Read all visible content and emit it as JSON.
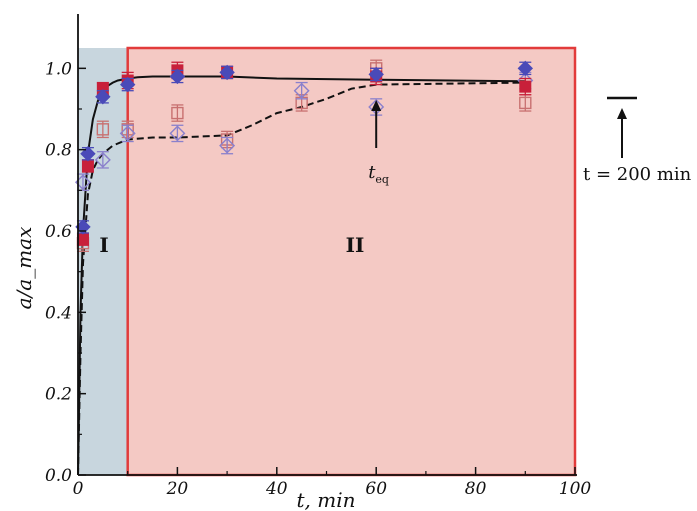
{
  "chart_data": {
    "type": "scatter",
    "title": "",
    "xlabel": "t, min",
    "ylabel": "a/a_max",
    "xlim": [
      0,
      100
    ],
    "ylim": [
      0,
      1.05
    ],
    "x_ticks": [
      0,
      20,
      40,
      60,
      80,
      100
    ],
    "y_ticks": [
      0.0,
      0.2,
      0.4,
      0.6,
      0.8,
      1.0
    ],
    "x_tick_labels": [
      "0",
      "20",
      "40",
      "60",
      "80",
      "100"
    ],
    "y_tick_labels": [
      "0.0",
      "0.2",
      "0.4",
      "0.6",
      "0.8",
      "1.0"
    ],
    "grid": false,
    "colors": {
      "filled_red": "#c8203a",
      "filled_blue": "#4a4ab8",
      "open_red": "#c87070",
      "open_blue": "#8a80cc",
      "region_I": "#c8d6de",
      "region_II": "#f4c9c4",
      "region_II_border": "#e23b3b"
    },
    "regions": [
      {
        "label": "I",
        "x_range": [
          0,
          10
        ]
      },
      {
        "label": "II",
        "x_range": [
          10,
          100
        ]
      }
    ],
    "series": [
      {
        "marker": "filled-square",
        "color_key": "filled_red",
        "x": [
          1,
          2,
          5,
          10,
          20,
          30,
          60,
          90
        ],
        "y": [
          0.58,
          0.76,
          0.95,
          0.97,
          0.995,
          0.99,
          0.98,
          0.955
        ],
        "err": [
          0.015,
          0.015,
          0.015,
          0.02,
          0.02,
          0.015,
          0.02,
          0.02
        ]
      },
      {
        "marker": "filled-diamond",
        "color_key": "filled_blue",
        "x": [
          1,
          2,
          5,
          10,
          20,
          30,
          60,
          90
        ],
        "y": [
          0.61,
          0.79,
          0.93,
          0.96,
          0.98,
          0.99,
          0.985,
          1.0
        ],
        "err": [
          0.015,
          0.015,
          0.015,
          0.015,
          0.015,
          0.015,
          0.015,
          0.015
        ]
      },
      {
        "marker": "open-square",
        "color_key": "open_red",
        "x": [
          1,
          5,
          10,
          20,
          30,
          45,
          60,
          90
        ],
        "y": [
          0.57,
          0.85,
          0.85,
          0.89,
          0.825,
          0.915,
          1.0,
          0.915
        ],
        "err": [
          0.02,
          0.02,
          0.02,
          0.02,
          0.02,
          0.02,
          0.02,
          0.02
        ]
      },
      {
        "marker": "open-diamond",
        "color_key": "open_blue",
        "x": [
          1,
          5,
          10,
          20,
          30,
          45,
          60,
          90
        ],
        "y": [
          0.72,
          0.775,
          0.84,
          0.84,
          0.81,
          0.945,
          0.905,
          0.97
        ],
        "err": [
          0.02,
          0.02,
          0.02,
          0.02,
          0.02,
          0.02,
          0.02,
          0.02
        ]
      }
    ],
    "curves": [
      {
        "style": "solid",
        "x": [
          0,
          0.5,
          1,
          2,
          3,
          4,
          5,
          6,
          7,
          8,
          10,
          12,
          15,
          20,
          30,
          40,
          60,
          90
        ],
        "y": [
          0,
          0.4,
          0.6,
          0.79,
          0.875,
          0.92,
          0.945,
          0.957,
          0.965,
          0.97,
          0.975,
          0.978,
          0.98,
          0.98,
          0.98,
          0.975,
          0.972,
          0.968
        ]
      },
      {
        "style": "dashed",
        "x": [
          0,
          0.5,
          1,
          2,
          3,
          4,
          5,
          7,
          10,
          15,
          20,
          30,
          35,
          40,
          45,
          50,
          55,
          60,
          90
        ],
        "y": [
          0,
          0.3,
          0.52,
          0.69,
          0.75,
          0.775,
          0.79,
          0.81,
          0.825,
          0.83,
          0.83,
          0.835,
          0.86,
          0.89,
          0.905,
          0.925,
          0.95,
          0.96,
          0.965
        ]
      }
    ],
    "annotations": {
      "teq_label": "t",
      "teq_sub": "eq",
      "teq_x": 60,
      "t200_label": "t = 200 min",
      "t200_value": 0.98
    }
  }
}
